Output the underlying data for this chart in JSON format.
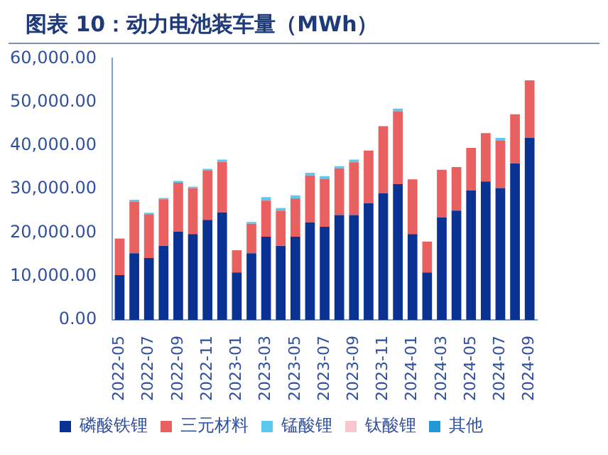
{
  "chart_data": {
    "type": "bar",
    "title": "图表 10：动力电池装车量（MWh）",
    "stacked": true,
    "legend": "bottom",
    "grid": false,
    "categories": [
      "2022-05",
      null,
      "2022-07",
      null,
      "2022-09",
      null,
      "2022-11",
      null,
      "2023-01",
      null,
      "2023-03",
      null,
      "2023-05",
      null,
      "2023-07",
      null,
      "2023-09",
      null,
      "2023-11",
      null,
      "2024-01",
      null,
      "2024-03",
      null,
      "2024-05",
      null,
      "2024-07",
      null,
      "2024-09"
    ],
    "ylim": [
      0,
      60000
    ],
    "yticks": [
      {
        "value": 0,
        "label": "0.00"
      },
      {
        "value": 10000,
        "label": "10,000.00"
      },
      {
        "value": 20000,
        "label": "20,000.00"
      },
      {
        "value": 30000,
        "label": "30,000.00"
      },
      {
        "value": 40000,
        "label": "40,000.00"
      },
      {
        "value": 50000,
        "label": "50,000.00"
      },
      {
        "value": 60000,
        "label": "60,000.00"
      }
    ],
    "series": [
      {
        "name": "磷酸铁锂",
        "color": "#0a3293",
        "values": [
          10300,
          15300,
          14200,
          17000,
          20300,
          19700,
          23000,
          24700,
          10900,
          15300,
          19100,
          17000,
          19100,
          22400,
          21400,
          24100,
          24100,
          26800,
          29100,
          31200,
          19700,
          10900,
          23500,
          25100,
          29700,
          31800,
          30300,
          35900,
          41800
        ]
      },
      {
        "name": "三元材料",
        "color": "#e8605f",
        "values": [
          8400,
          11900,
          10100,
          10700,
          11200,
          10600,
          11300,
          11600,
          5100,
          6800,
          8300,
          8100,
          8800,
          10800,
          11000,
          10700,
          12100,
          12100,
          15400,
          16700,
          12600,
          7100,
          11000,
          10000,
          9800,
          11100,
          10900,
          11300,
          13200
        ]
      },
      {
        "name": "锰酸锂",
        "color": "#5bc8f0",
        "values": [
          0,
          400,
          300,
          300,
          400,
          300,
          400,
          500,
          0,
          400,
          800,
          600,
          700,
          600,
          600,
          500,
          600,
          0,
          0,
          600,
          0,
          0,
          0,
          0,
          0,
          0,
          600,
          0,
          0
        ]
      },
      {
        "name": "钛酸锂",
        "color": "#f7c6cc",
        "values": [
          0,
          0,
          0,
          0,
          0,
          0,
          0,
          0,
          0,
          0,
          0,
          0,
          0,
          0,
          0,
          0,
          0,
          0,
          0,
          0,
          0,
          0,
          0,
          0,
          0,
          0,
          0,
          0,
          0
        ]
      },
      {
        "name": "其他",
        "color": "#1f9ad6",
        "values": [
          0,
          0,
          0,
          0,
          0,
          0,
          0,
          0,
          0,
          0,
          0,
          0,
          0,
          0,
          0,
          0,
          0,
          0,
          0,
          0,
          0,
          0,
          0,
          0,
          0,
          0,
          0,
          0,
          0
        ]
      }
    ]
  }
}
